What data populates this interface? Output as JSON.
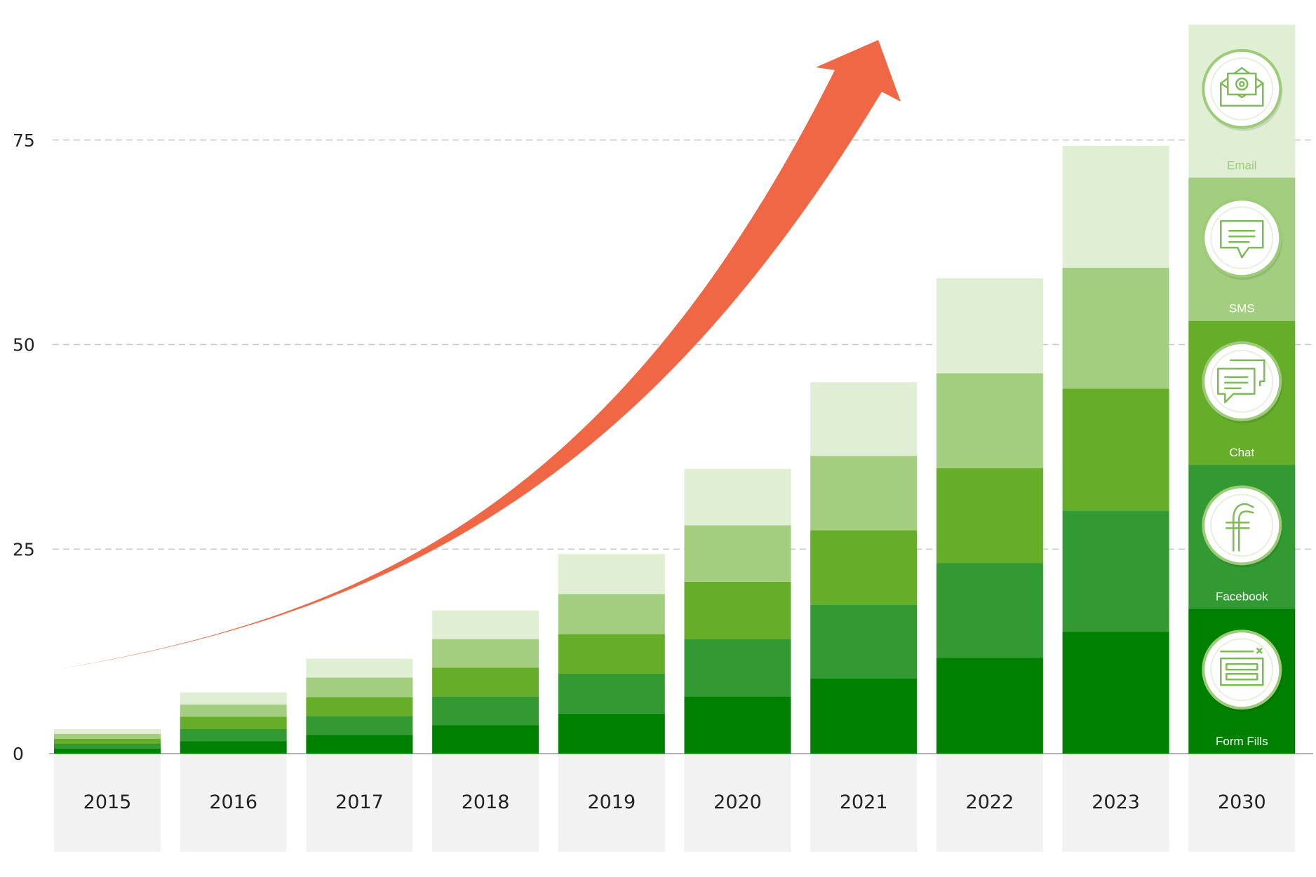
{
  "chart_data": {
    "type": "bar",
    "stacked": true,
    "title": "",
    "xlabel": "",
    "ylabel": "",
    "categories": [
      "2015",
      "2016",
      "2017",
      "2018",
      "2019",
      "2020",
      "2021",
      "2022",
      "2023",
      "2030"
    ],
    "series": [
      {
        "name": "Form Fills",
        "color": "#008000",
        "icon": "form-icon",
        "values": [
          0.6,
          1.5,
          2.3,
          3.5,
          4.9,
          7.0,
          9.2,
          11.7,
          14.9,
          17.7
        ]
      },
      {
        "name": "Facebook",
        "color": "#339933",
        "icon": "facebook-icon",
        "values": [
          0.6,
          1.5,
          2.3,
          3.5,
          4.9,
          7.0,
          9.0,
          11.6,
          14.8,
          17.6
        ]
      },
      {
        "name": "Chat",
        "color": "#66AD2A",
        "icon": "chat-icon",
        "values": [
          0.6,
          1.5,
          2.3,
          3.5,
          4.8,
          7.0,
          9.1,
          11.6,
          14.9,
          17.6
        ]
      },
      {
        "name": "SMS",
        "color": "#A3CD7F",
        "icon": "sms-icon",
        "values": [
          0.6,
          1.5,
          2.4,
          3.5,
          4.9,
          6.9,
          9.1,
          11.6,
          14.8,
          17.5
        ]
      },
      {
        "name": "Email",
        "color": "#E0EED4",
        "icon": "email-icon",
        "values": [
          0.6,
          1.5,
          2.3,
          3.5,
          4.9,
          6.9,
          9.0,
          11.6,
          14.9,
          18.7
        ]
      }
    ],
    "yticks": [
      0,
      25,
      50,
      75
    ],
    "ylim": [
      0,
      89
    ],
    "grid": "horizontal dashed",
    "legend": "icons on the 2030 bar",
    "trend_arrow": {
      "color": "#EF6744",
      "direction": "upward exponential"
    },
    "category_band_color": "#F2F2F2"
  }
}
